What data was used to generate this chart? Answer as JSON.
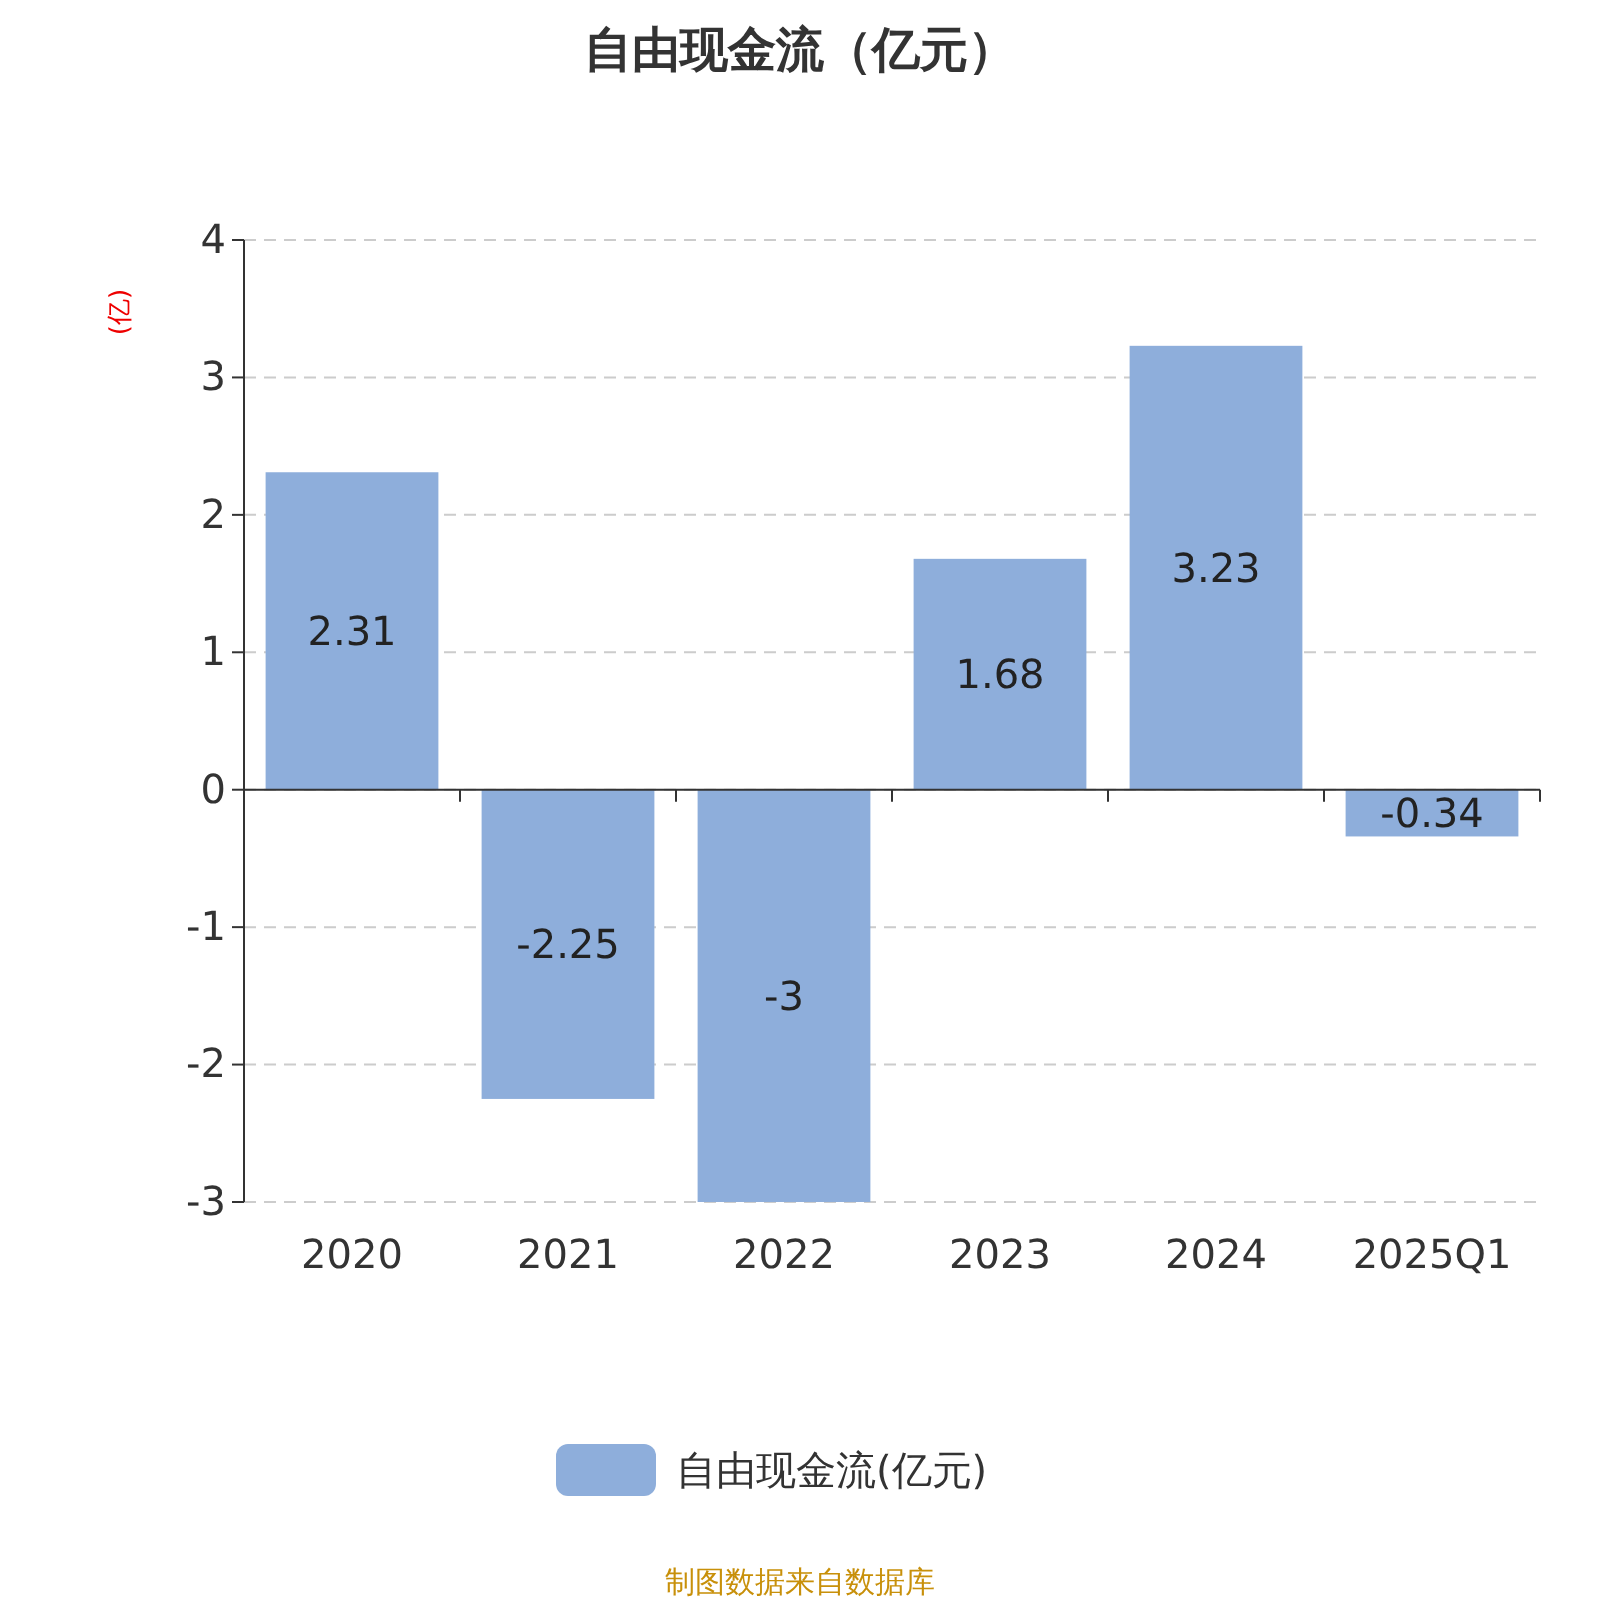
{
  "chart_data": {
    "type": "bar",
    "title": "自由现金流（亿元）",
    "ylabel": "(亿)",
    "categories": [
      "2020",
      "2021",
      "2022",
      "2023",
      "2024",
      "2025Q1"
    ],
    "series": [
      {
        "name": "自由现金流(亿元)",
        "color": "#8eaedb",
        "values": [
          2.31,
          -2.25,
          -3,
          1.68,
          3.23,
          -0.34
        ]
      }
    ],
    "ylim": [
      -3,
      4
    ],
    "yticks": [
      -3,
      -2,
      -1,
      0,
      1,
      2,
      3,
      4
    ],
    "grid": "y",
    "legend": "bottom",
    "data_labels": true,
    "annotations": [
      "制图数据来自数据库"
    ]
  }
}
